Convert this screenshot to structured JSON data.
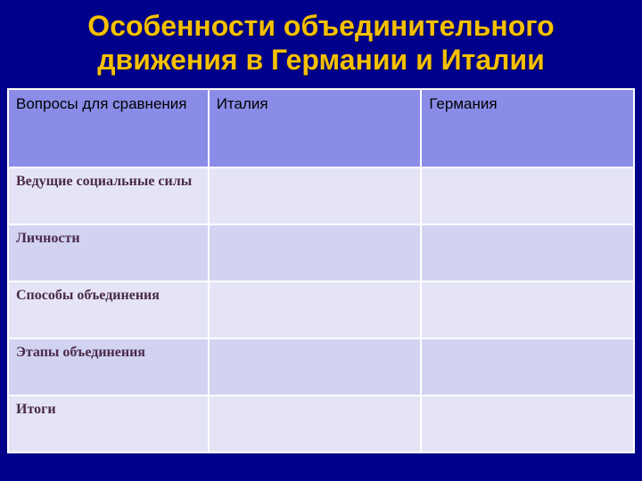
{
  "slide": {
    "title": "Особенности объединительного движения в Германии и Италии",
    "title_color": "#f5c000",
    "title_fontsize": 32,
    "background_color": "#00008b"
  },
  "table": {
    "type": "table",
    "header_bg": "#8a8ce8",
    "row_bg_odd": "#e4e4f6",
    "row_bg_even": "#d2d2f1",
    "border_spacing": 2,
    "columns": [
      {
        "label": "Вопросы для сравнения",
        "width_pct": 32
      },
      {
        "label": "Италия",
        "width_pct": 34
      },
      {
        "label": "Германия",
        "width_pct": 34
      }
    ],
    "rows": [
      {
        "label": "Ведущие социальные силы",
        "italy": "",
        "germany": ""
      },
      {
        "label": "Личности",
        "italy": "",
        "germany": ""
      },
      {
        "label": "Способы объединения",
        "italy": "",
        "germany": ""
      },
      {
        "label": "Этапы объединения",
        "italy": "",
        "germany": ""
      },
      {
        "label": "Итоги",
        "italy": "",
        "germany": ""
      }
    ],
    "header_fontsize": 17,
    "rowlabel_fontsize": 16,
    "rowlabel_color": "#4a2a4a",
    "rowlabel_fontfamily": "Times New Roman"
  }
}
